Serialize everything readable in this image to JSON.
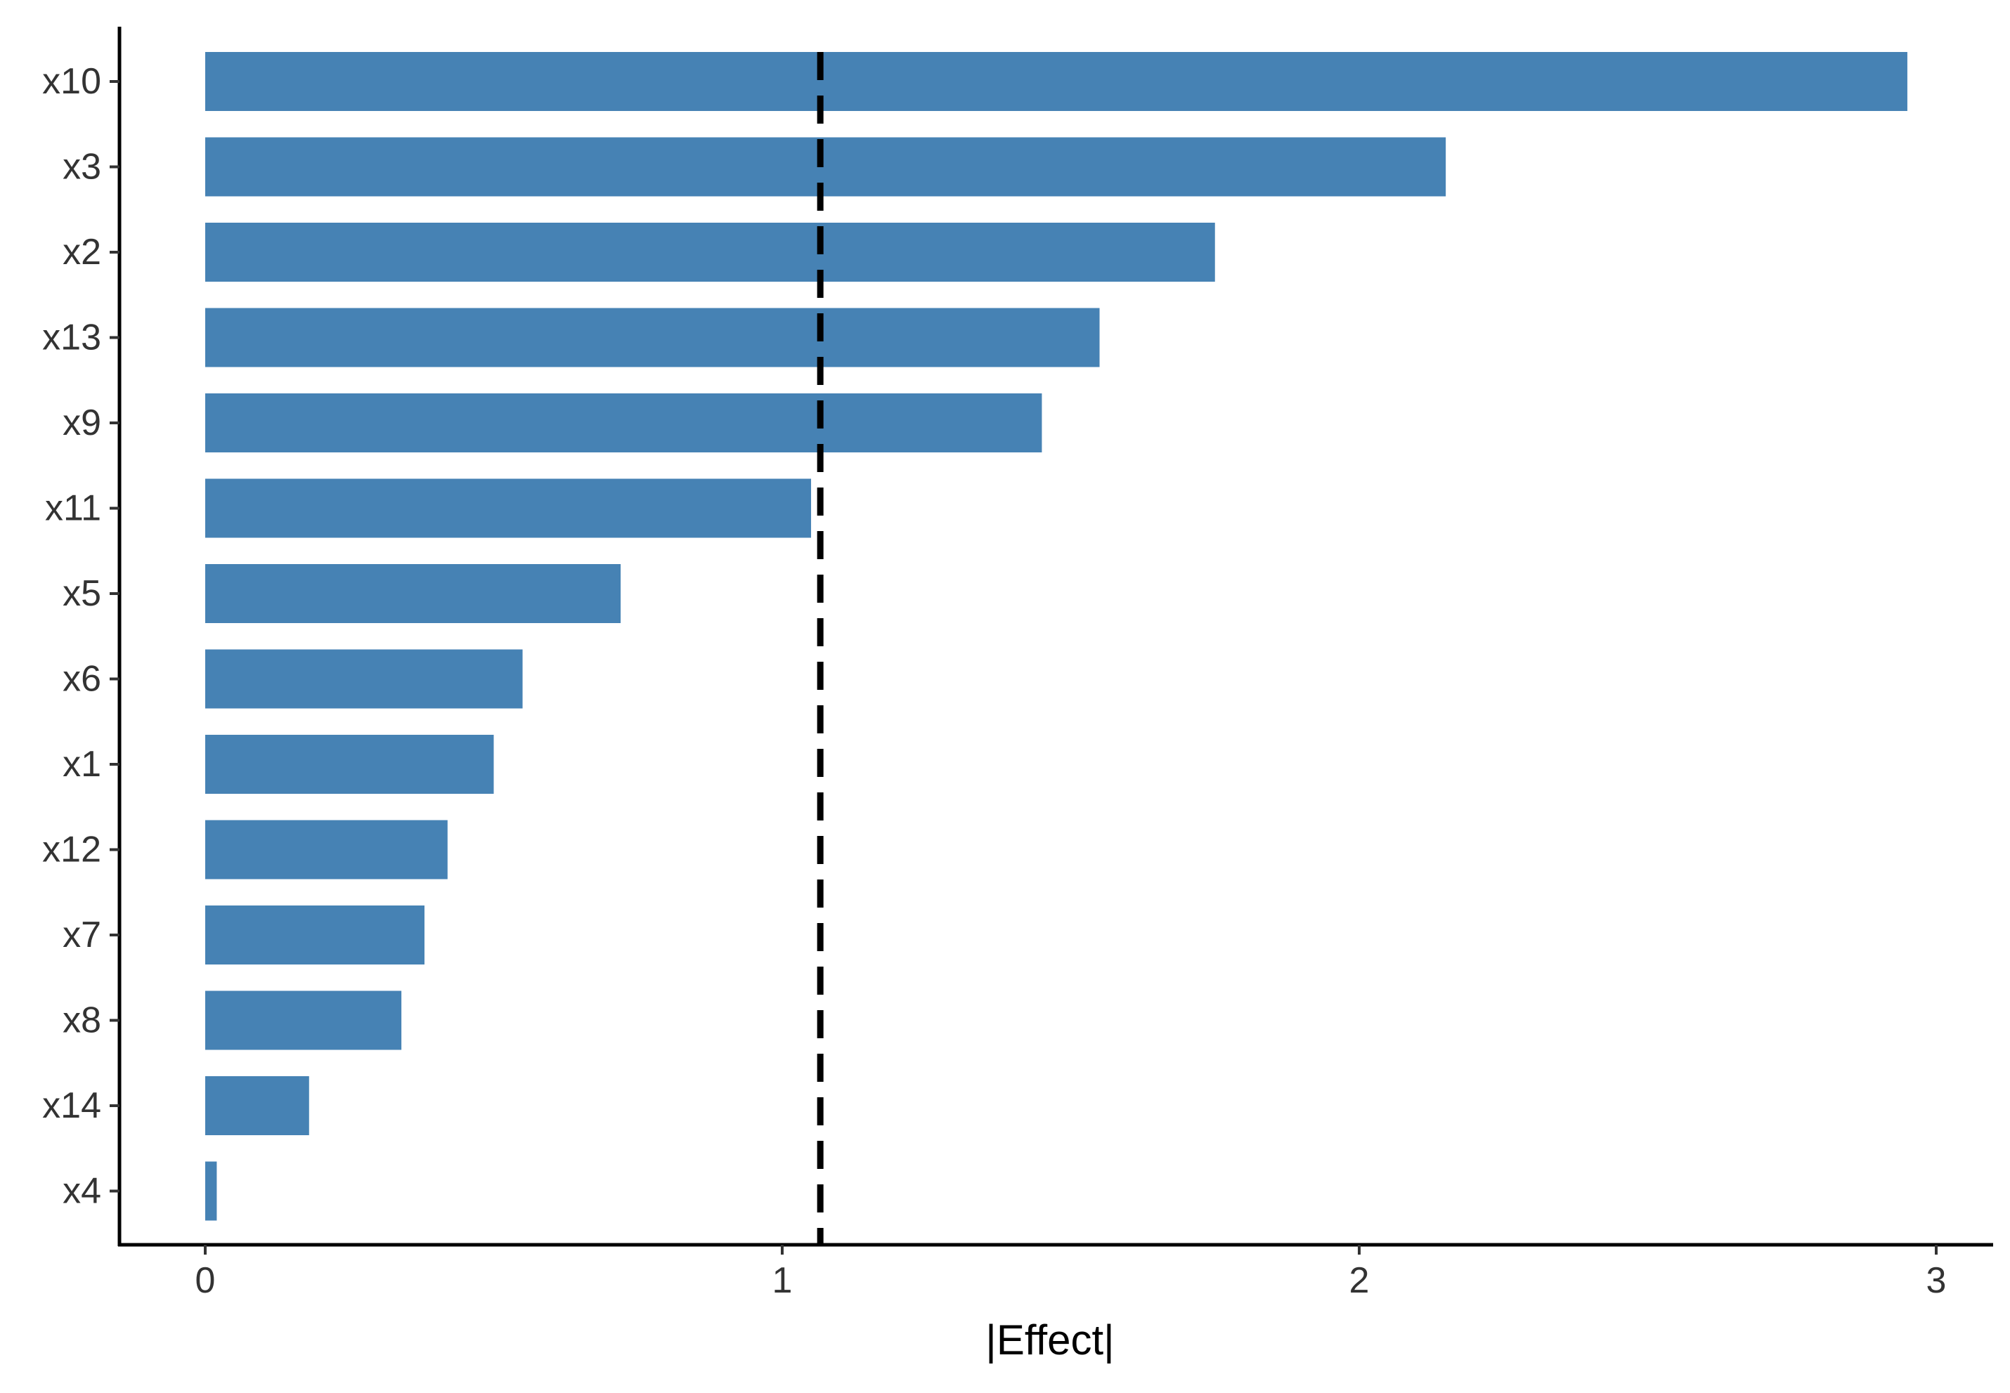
{
  "chart_data": {
    "type": "bar",
    "orientation": "horizontal",
    "title": "",
    "xlabel": "|Effect|",
    "ylabel": "",
    "categories": [
      "x10",
      "x3",
      "x2",
      "x13",
      "x9",
      "x11",
      "x5",
      "x6",
      "x1",
      "x12",
      "x7",
      "x8",
      "x14",
      "x4"
    ],
    "values": [
      2.95,
      2.15,
      1.75,
      1.55,
      1.45,
      1.05,
      0.72,
      0.55,
      0.5,
      0.42,
      0.38,
      0.34,
      0.18,
      0.02
    ],
    "xlim": [
      -0.15,
      3.1
    ],
    "xticks": [
      0,
      1,
      2,
      3
    ],
    "xtick_labels": [
      "0",
      "1",
      "2",
      "3"
    ],
    "reference_line": {
      "value": 1.066,
      "style": "dashed",
      "color": "#000000"
    },
    "bar_color": "#4682B4",
    "grid": false,
    "legend": "none"
  }
}
